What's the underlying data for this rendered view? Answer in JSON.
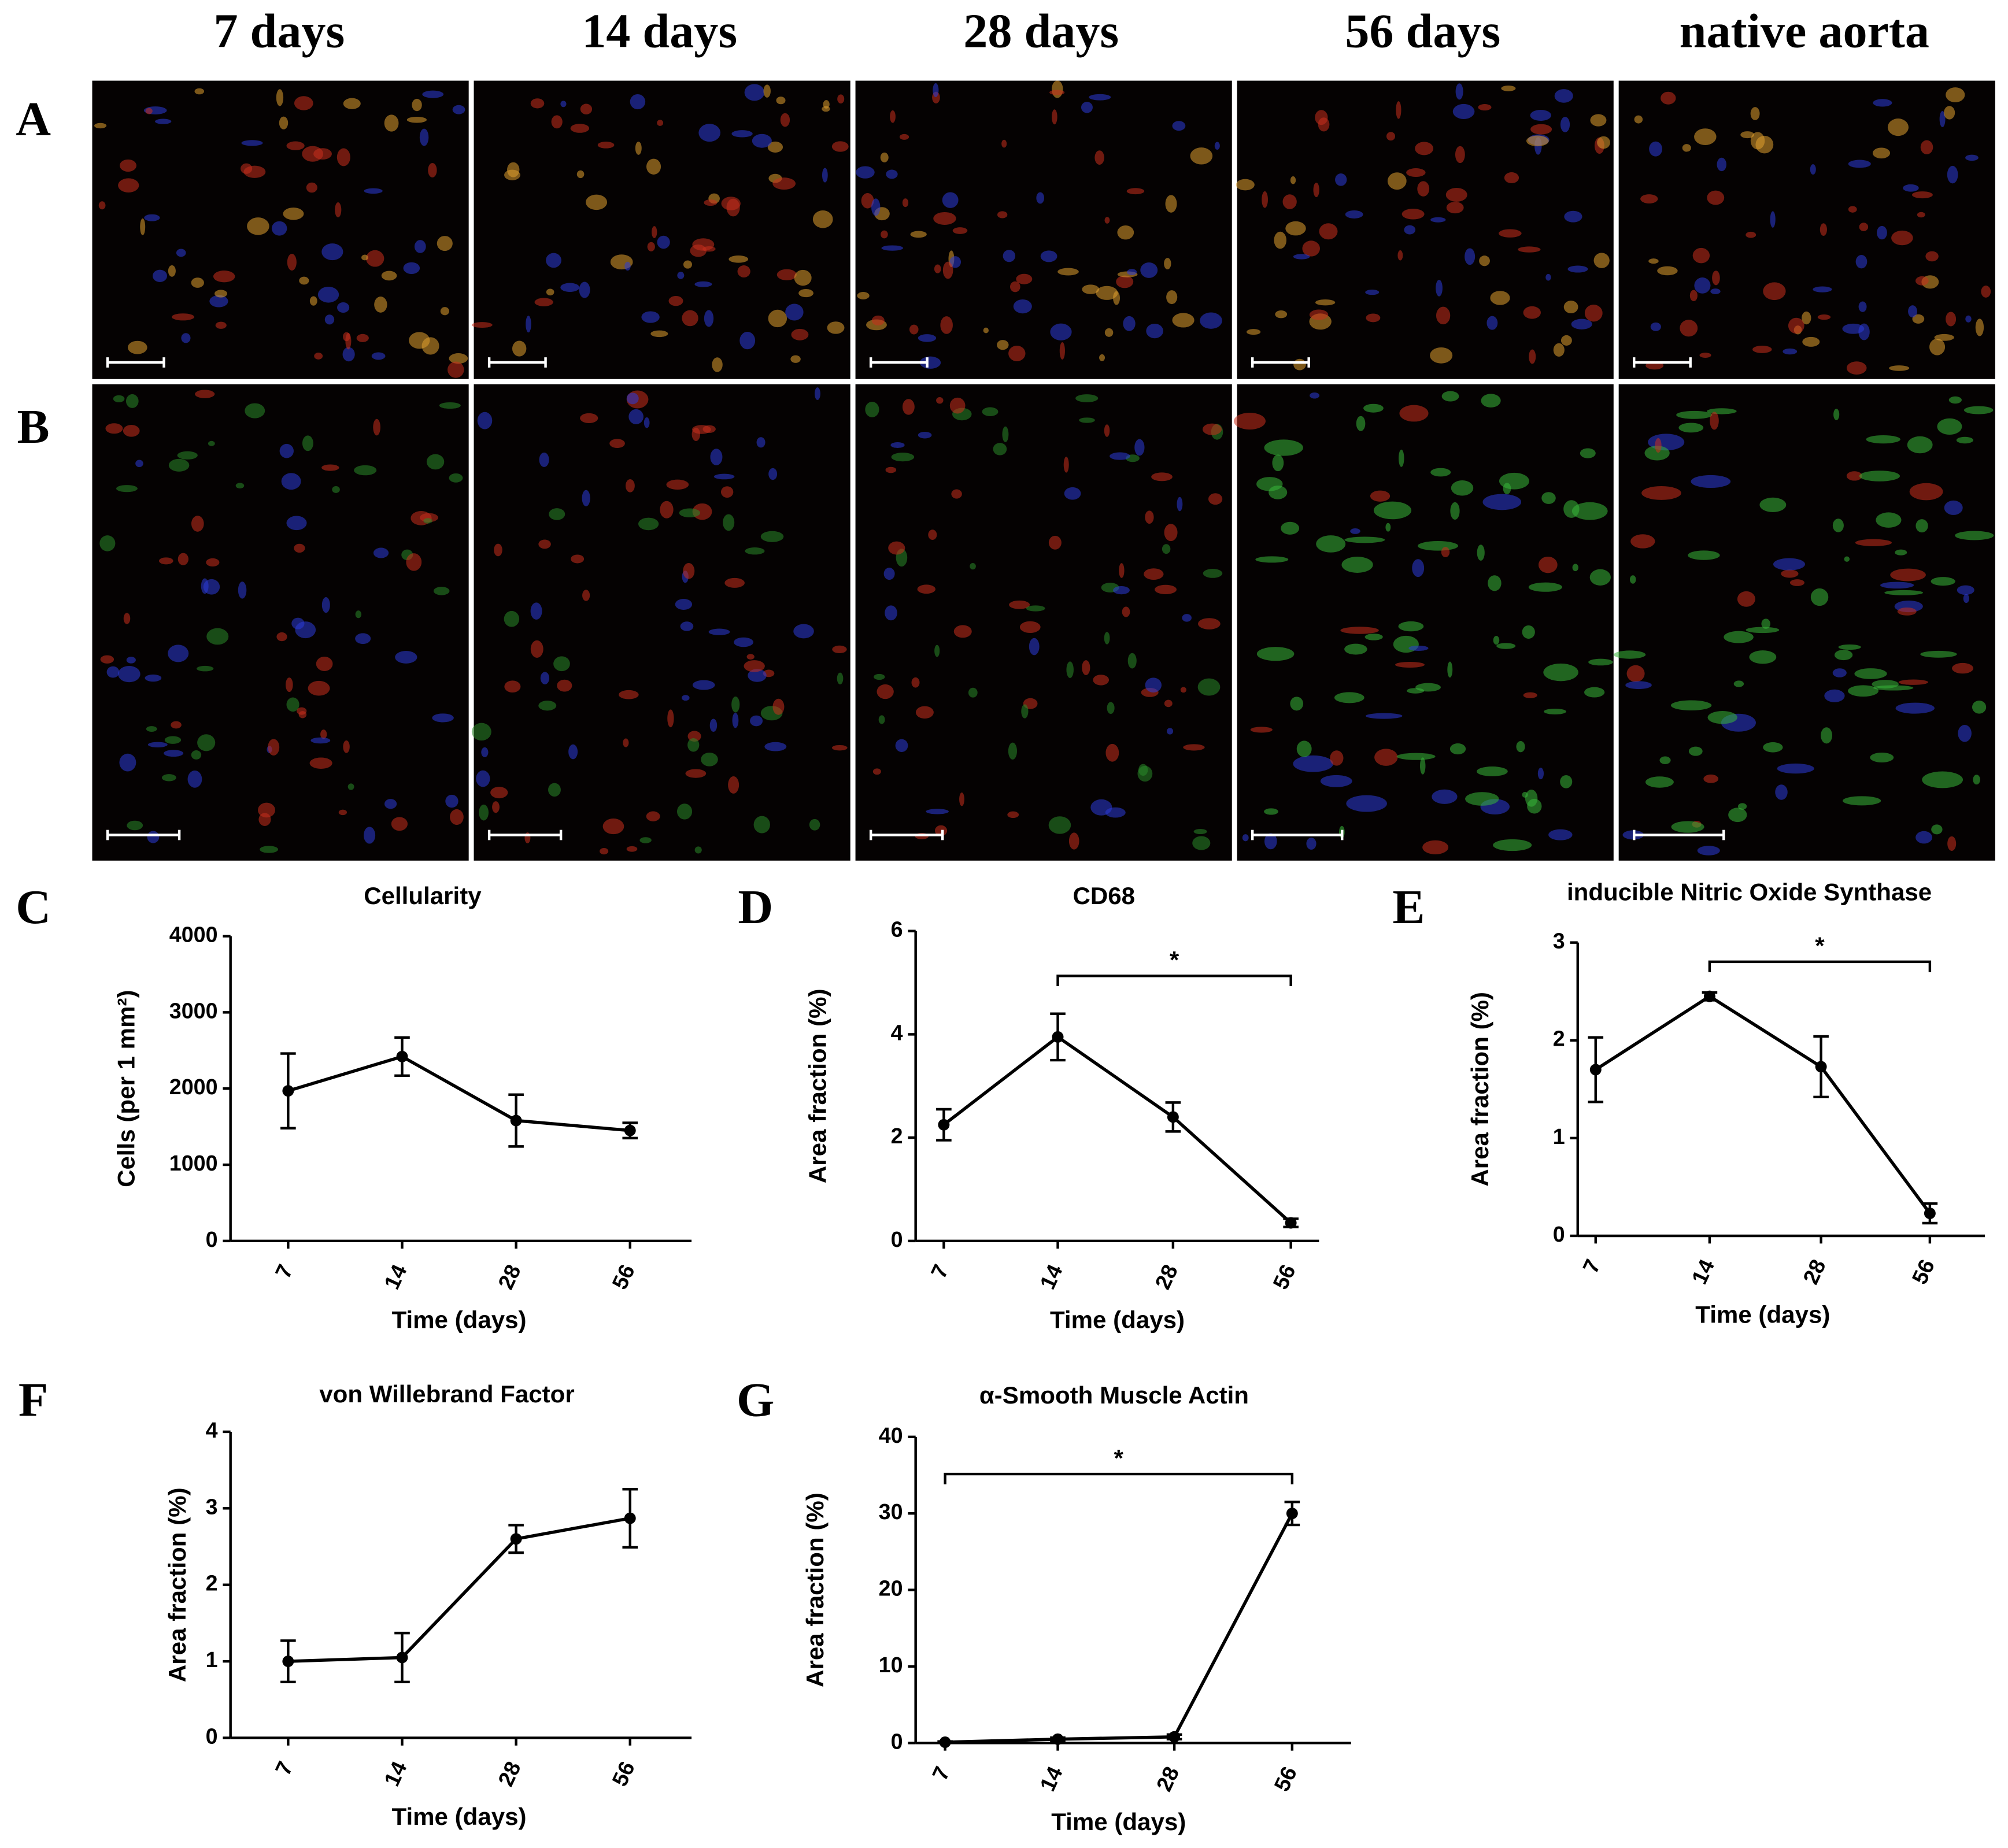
{
  "columns": [
    "7 days",
    "14 days",
    "28 days",
    "56 days",
    "native aorta"
  ],
  "row_labels": [
    "A",
    "B"
  ],
  "chart_data": [
    {
      "type": "line",
      "panel": "C",
      "title": "Cellularity",
      "xlabel": "Time (days)",
      "ylabel": "Cells (per 1 mm²)",
      "categories": [
        "7",
        "14",
        "28",
        "56"
      ],
      "ylim": [
        0,
        4000
      ],
      "yticks": [
        0,
        1000,
        2000,
        3000,
        4000
      ],
      "series": [
        {
          "color": "#000000",
          "values": [
            1970,
            2420,
            1580,
            1450
          ],
          "errors": [
            490,
            250,
            340,
            100
          ]
        }
      ]
    },
    {
      "type": "line",
      "panel": "D",
      "title": "CD68",
      "xlabel": "Time (days)",
      "ylabel": "Area fraction (%)",
      "categories": [
        "7",
        "14",
        "28",
        "56"
      ],
      "ylim": [
        0,
        6
      ],
      "yticks": [
        0,
        2,
        4,
        6
      ],
      "series": [
        {
          "color": "#000000",
          "values": [
            2.25,
            3.95,
            2.4,
            0.35
          ],
          "errors": [
            0.3,
            0.45,
            0.28,
            0.08
          ]
        }
      ],
      "significance": [
        {
          "between": [
            "14",
            "56"
          ],
          "label": "*"
        }
      ]
    },
    {
      "type": "line",
      "panel": "E",
      "title": "inducible Nitric Oxide Synthase",
      "xlabel": "Time (days)",
      "ylabel": "Area fraction (%)",
      "categories": [
        "7",
        "14",
        "28",
        "56"
      ],
      "ylim": [
        0,
        3
      ],
      "yticks": [
        0,
        1,
        2,
        3
      ],
      "series": [
        {
          "color": "#000000",
          "values": [
            1.7,
            2.45,
            1.73,
            0.23
          ],
          "errors": [
            0.33,
            0.04,
            0.31,
            0.1
          ]
        }
      ],
      "significance": [
        {
          "between": [
            "14",
            "56"
          ],
          "label": "*"
        }
      ]
    },
    {
      "type": "line",
      "panel": "F",
      "title": "von Willebrand Factor",
      "xlabel": "Time (days)",
      "ylabel": "Area fraction (%)",
      "categories": [
        "7",
        "14",
        "28",
        "56"
      ],
      "ylim": [
        0,
        4
      ],
      "yticks": [
        0,
        1,
        2,
        3,
        4
      ],
      "series": [
        {
          "color": "#000000",
          "values": [
            1.0,
            1.05,
            2.6,
            2.87
          ],
          "errors": [
            0.27,
            0.32,
            0.18,
            0.38
          ]
        }
      ]
    },
    {
      "type": "line",
      "panel": "G",
      "title": "α-Smooth Muscle Actin",
      "xlabel": "Time (days)",
      "ylabel": "Area fraction (%)",
      "categories": [
        "7",
        "14",
        "28",
        "56"
      ],
      "ylim": [
        0,
        40
      ],
      "yticks": [
        0,
        10,
        20,
        30,
        40
      ],
      "series": [
        {
          "color": "#000000",
          "values": [
            0.1,
            0.5,
            0.8,
            30
          ],
          "errors": [
            0.1,
            0.2,
            0.3,
            1.5
          ]
        }
      ],
      "significance": [
        {
          "between": [
            "7",
            "56"
          ],
          "label": "*"
        }
      ]
    }
  ]
}
